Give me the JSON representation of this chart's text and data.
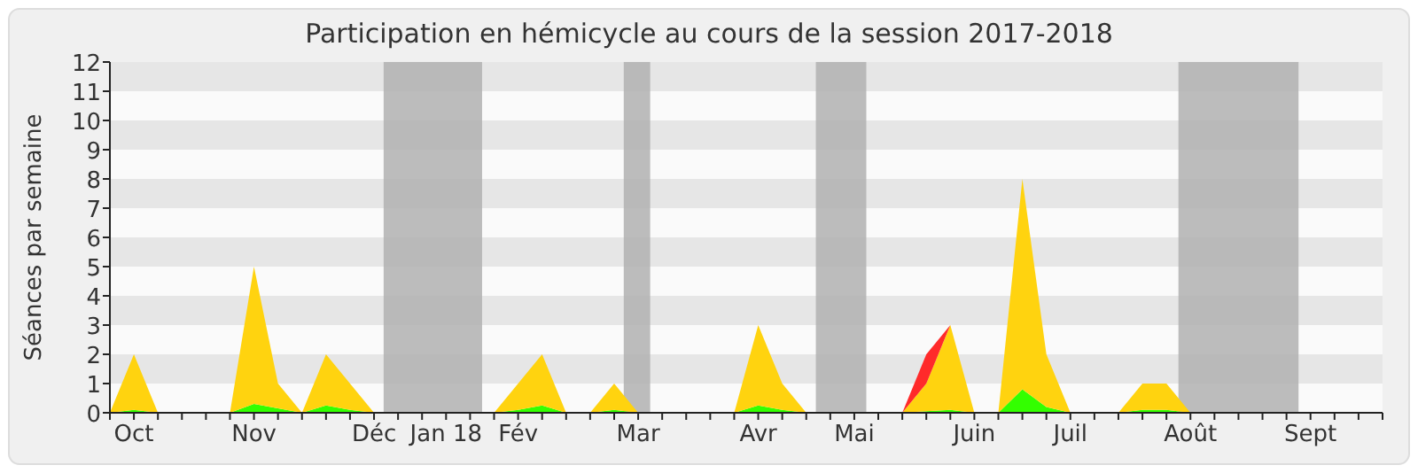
{
  "chart_data": {
    "type": "area",
    "stacked": true,
    "title": "Participation en hémicycle au cours de la session 2017-2018",
    "ylabel": "Séances par semaine",
    "categories": [
      null,
      "Oct",
      null,
      null,
      null,
      null,
      "Nov",
      null,
      null,
      null,
      null,
      "Déc",
      null,
      null,
      "Jan 18",
      null,
      null,
      "Fév",
      null,
      null,
      null,
      null,
      "Mar",
      null,
      null,
      null,
      null,
      "Avr",
      null,
      null,
      null,
      "Mai",
      null,
      null,
      null,
      null,
      "Juin",
      null,
      null,
      null,
      "Juil",
      null,
      null,
      null,
      null,
      "Août",
      null,
      null,
      null,
      null,
      "Sept",
      null,
      null,
      null
    ],
    "series": [
      {
        "color": "#33ff00",
        "values": [
          0,
          0.1,
          0,
          0,
          0,
          0,
          0.3,
          0.15,
          0,
          0.25,
          0.1,
          0,
          0,
          0,
          0,
          0,
          0,
          0.1,
          0.25,
          0,
          0,
          0.1,
          0,
          0,
          0,
          0,
          0,
          0.25,
          0.1,
          0,
          0,
          0,
          0,
          0,
          0.05,
          0.1,
          0,
          0,
          0.8,
          0.2,
          0,
          0,
          0,
          0.1,
          0.1,
          0,
          0,
          0,
          0,
          0,
          0,
          0,
          0,
          0
        ]
      },
      {
        "color": "#ffd30f",
        "values": [
          0,
          1.9,
          0,
          0,
          0,
          0,
          4.7,
          0.85,
          0,
          1.75,
          0.9,
          0,
          0,
          0,
          0,
          0,
          0,
          0.9,
          1.75,
          0,
          0,
          0.9,
          0,
          0,
          0,
          0,
          0,
          2.75,
          0.9,
          0,
          0,
          0,
          0,
          0,
          0.95,
          2.9,
          0,
          0,
          7.2,
          1.8,
          0,
          0,
          0,
          0.9,
          0.9,
          0,
          0,
          0,
          0,
          0,
          0,
          0,
          0,
          0
        ]
      },
      {
        "color": "#ff2a2a",
        "values": [
          null,
          null,
          null,
          null,
          null,
          null,
          null,
          null,
          null,
          null,
          null,
          null,
          null,
          null,
          null,
          null,
          null,
          null,
          null,
          null,
          null,
          null,
          null,
          null,
          null,
          null,
          null,
          null,
          null,
          null,
          null,
          null,
          null,
          0,
          1,
          0,
          null,
          null,
          null,
          null,
          null,
          null,
          null,
          null,
          null,
          null,
          null,
          null,
          null,
          null,
          null,
          null,
          null,
          null
        ]
      }
    ],
    "ylim": [
      0,
      12
    ],
    "yticks": [
      0,
      1,
      2,
      3,
      4,
      5,
      6,
      7,
      8,
      9,
      10,
      11,
      12
    ]
  }
}
